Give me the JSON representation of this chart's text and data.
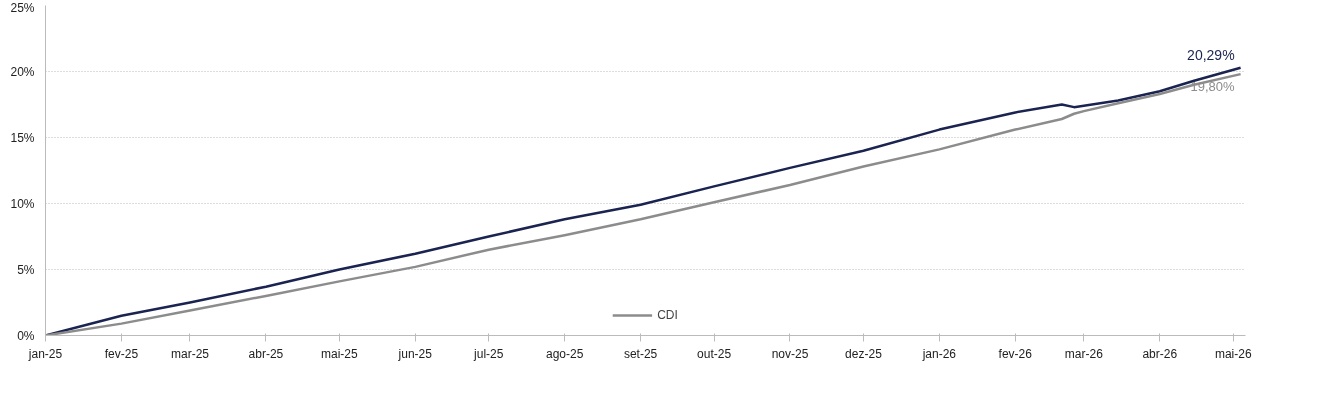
{
  "chart_data": {
    "type": "line",
    "x": [
      "2025-01-01",
      "2025-02-01",
      "2025-03-01",
      "2025-04-01",
      "2025-05-01",
      "2025-06-01",
      "2025-07-01",
      "2025-08-01",
      "2025-09-01",
      "2025-10-01",
      "2025-11-01",
      "2025-12-01",
      "2026-01-01",
      "2026-02-01",
      "2026-02-20",
      "2026-02-25",
      "2026-03-01",
      "2026-03-15",
      "2026-04-01",
      "2026-04-15",
      "2026-05-04"
    ],
    "series": [
      {
        "color": "#1b2451",
        "values": [
          0,
          1.5,
          2.5,
          3.7,
          5.0,
          6.2,
          7.5,
          8.8,
          9.9,
          11.3,
          12.7,
          14.0,
          15.6,
          16.9,
          17.5,
          17.3,
          17.4,
          17.8,
          18.5,
          19.3,
          20.29
        ]
      },
      {
        "name": "CDI",
        "color": "#8c8c8c",
        "values": [
          0,
          0.9,
          1.9,
          3.0,
          4.1,
          5.2,
          6.5,
          7.6,
          8.8,
          10.1,
          11.4,
          12.8,
          14.1,
          15.6,
          16.4,
          16.8,
          17.0,
          17.6,
          18.3,
          19.0,
          19.8
        ]
      }
    ],
    "xlim": [
      "2025-01-01",
      "2026-05-06"
    ],
    "xticks": [
      {
        "value": "2025-01-01",
        "label": "jan-25"
      },
      {
        "value": "2025-02-01",
        "label": "fev-25"
      },
      {
        "value": "2025-03-01",
        "label": "mar-25"
      },
      {
        "value": "2025-04-01",
        "label": "abr-25"
      },
      {
        "value": "2025-05-01",
        "label": "mai-25"
      },
      {
        "value": "2025-06-01",
        "label": "jun-25"
      },
      {
        "value": "2025-07-01",
        "label": "jul-25"
      },
      {
        "value": "2025-08-01",
        "label": "ago-25"
      },
      {
        "value": "2025-09-01",
        "label": "set-25"
      },
      {
        "value": "2025-10-01",
        "label": "out-25"
      },
      {
        "value": "2025-11-01",
        "label": "nov-25"
      },
      {
        "value": "2025-12-01",
        "label": "dez-25"
      },
      {
        "value": "2026-01-01",
        "label": "jan-26"
      },
      {
        "value": "2026-02-01",
        "label": "fev-26"
      },
      {
        "value": "2026-03-01",
        "label": "mar-26"
      },
      {
        "value": "2026-04-01",
        "label": "abr-26"
      },
      {
        "value": "2026-05-01",
        "label": "mai-26"
      }
    ],
    "ylim": [
      0,
      25
    ],
    "yticks": [
      {
        "value": 0,
        "label": "0%"
      },
      {
        "value": 5,
        "label": "5%"
      },
      {
        "value": 10,
        "label": "10%"
      },
      {
        "value": 15,
        "label": "15%"
      },
      {
        "value": 20,
        "label": "20%"
      },
      {
        "value": 25,
        "label": "25%"
      }
    ],
    "annotations": [
      {
        "text": "20,29%",
        "x": "2026-05-04",
        "y": 20.29
      },
      {
        "text": "19,80%",
        "x": "2026-05-04",
        "y": 19.8
      }
    ],
    "grid": "y",
    "legend": "bottom",
    "line_style": "solid"
  }
}
